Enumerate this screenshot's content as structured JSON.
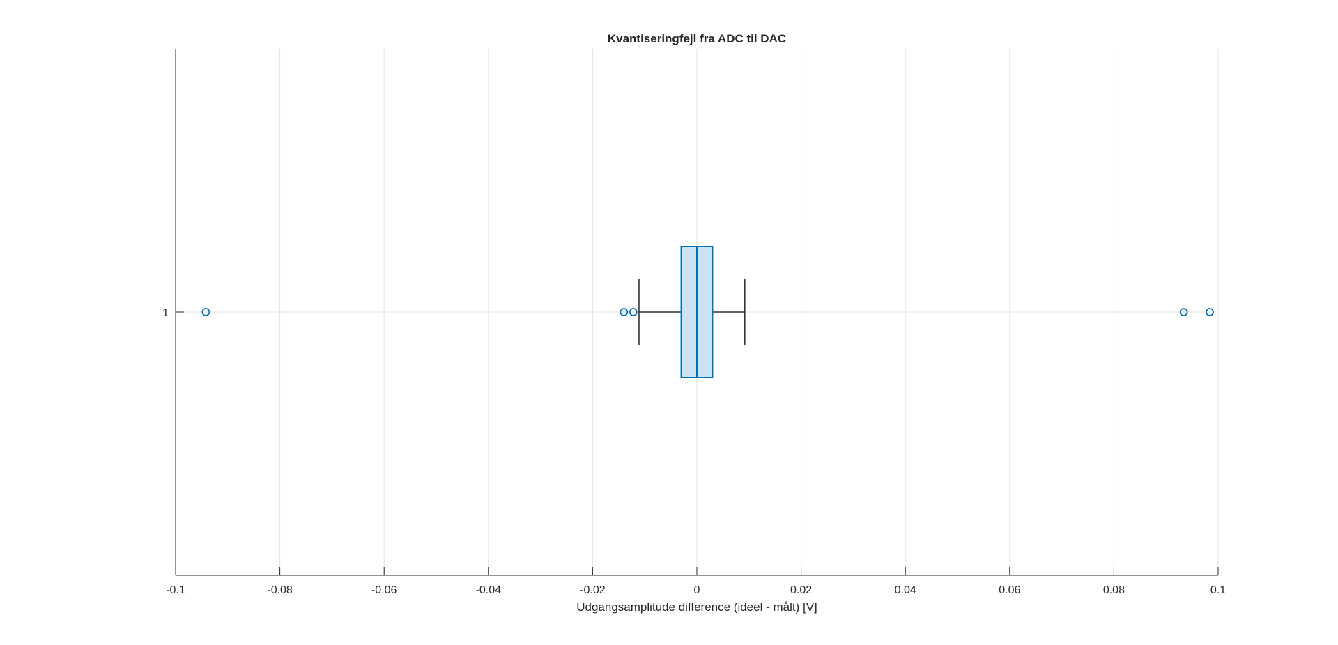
{
  "chart_data": {
    "type": "boxplot",
    "orientation": "horizontal",
    "title": "Kvantiseringfejl fra ADC til DAC",
    "xlabel": "Udgangsamplitude difference (ideel - målt) [V]",
    "ylabel": "",
    "xlim": [
      -0.1,
      0.1
    ],
    "xticks": [
      -0.1,
      -0.08,
      -0.06,
      -0.04,
      -0.02,
      0,
      0.02,
      0.04,
      0.06,
      0.08,
      0.1
    ],
    "xtick_labels": [
      "-0.1",
      "-0.08",
      "-0.06",
      "-0.04",
      "-0.02",
      "0",
      "0.02",
      "0.04",
      "0.06",
      "0.08",
      "0.1"
    ],
    "categories": [
      "1"
    ],
    "grid": true,
    "box": {
      "lower_whisker": -0.0111,
      "q1": -0.003,
      "median": 0.0,
      "q3": 0.003,
      "upper_whisker": 0.0092
    },
    "outliers": [
      -0.0942,
      -0.014,
      -0.0122,
      0.0934,
      0.0984
    ],
    "colors": {
      "box_edge": "#0072BD",
      "box_fill": "#CCE3F3",
      "whisker": "#333333",
      "outlier": "#0072BD",
      "grid": "#E3E3E3",
      "axis": "#262626"
    }
  }
}
